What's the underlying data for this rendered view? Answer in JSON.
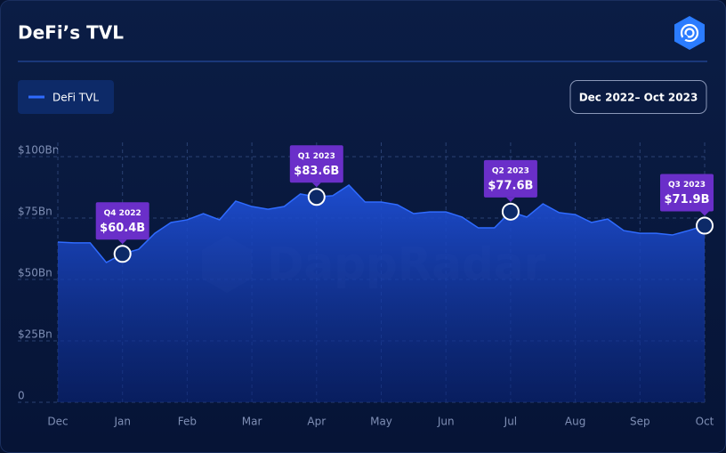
{
  "chart_data": {
    "type": "area",
    "title": "DeFi’s TVL",
    "subtitle": "Dec 2022– Oct 2023",
    "watermark": "DappRadar",
    "categories": [
      "Dec",
      null,
      null,
      null,
      "Jan",
      null,
      null,
      null,
      "Feb",
      null,
      null,
      null,
      "Mar",
      null,
      null,
      null,
      "Apr",
      null,
      null,
      null,
      "May",
      null,
      null,
      null,
      "Jun",
      null,
      null,
      null,
      "Jul",
      null,
      null,
      null,
      "Aug",
      null,
      null,
      null,
      "Sep",
      null,
      null,
      null,
      "Oct"
    ],
    "series": [
      {
        "name": "DeFi TVL",
        "color": "#2f6bff",
        "values": [
          65.2,
          64.9,
          64.9,
          56.9,
          60.4,
          62.3,
          68.8,
          73.2,
          74.3,
          76.8,
          74.3,
          81.9,
          79.7,
          78.6,
          79.7,
          84.8,
          83.6,
          84.1,
          88.4,
          81.5,
          81.5,
          80.4,
          76.8,
          77.5,
          77.5,
          75.4,
          71.0,
          71.0,
          77.6,
          75.4,
          80.8,
          77.2,
          76.4,
          73.2,
          74.6,
          69.9,
          68.8,
          68.8,
          68.1,
          69.9,
          71.9
        ],
        "value_labels": [
          null,
          null,
          null,
          null,
          "$60.4B",
          null,
          null,
          null,
          null,
          null,
          null,
          null,
          null,
          null,
          null,
          null,
          "$83.6B",
          null,
          null,
          null,
          null,
          null,
          null,
          null,
          null,
          null,
          null,
          null,
          "$77.6B",
          null,
          null,
          null,
          null,
          null,
          null,
          null,
          null,
          null,
          null,
          null,
          "$71.9B"
        ],
        "value_label_titles": [
          null,
          null,
          null,
          null,
          "Q4 2022",
          null,
          null,
          null,
          null,
          null,
          null,
          null,
          null,
          null,
          null,
          null,
          "Q1 2023",
          null,
          null,
          null,
          null,
          null,
          null,
          null,
          null,
          null,
          null,
          null,
          "Q2 2023",
          null,
          null,
          null,
          null,
          null,
          null,
          null,
          null,
          null,
          null,
          null,
          "Q3 2023"
        ]
      }
    ],
    "ylim": [
      0,
      100
    ],
    "yticks": [
      0,
      {
        "value": 25,
        "label": "$25Bn"
      },
      {
        "value": 50,
        "label": "$50Bn"
      },
      {
        "value": 75,
        "label": "$75Bn"
      },
      {
        "value": 100,
        "label": "$100Bn"
      }
    ],
    "grid": true
  }
}
